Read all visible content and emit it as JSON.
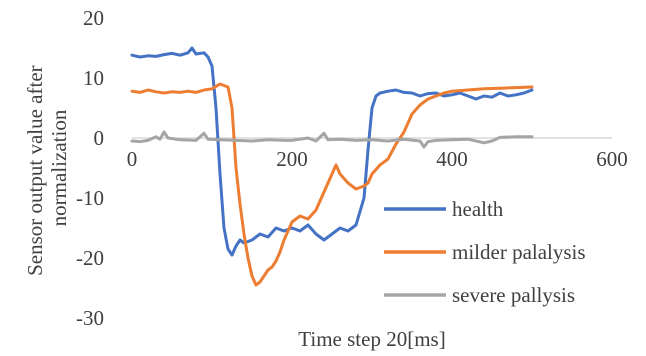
{
  "chart_data": {
    "type": "line",
    "xlabel": "Time step 20[ms]",
    "ylabel_lines": [
      "Sensor output value after",
      "normalization"
    ],
    "xlim": [
      0,
      600
    ],
    "ylim": [
      -30,
      20
    ],
    "x_ticks": [
      0,
      200,
      400,
      600
    ],
    "y_ticks": [
      20,
      10,
      0,
      -10,
      -20,
      -30
    ],
    "x_tick_labels": [
      "0",
      "200",
      "400",
      "600"
    ],
    "y_tick_labels": [
      "20",
      "10",
      "0",
      "-10",
      "-20",
      "-30"
    ],
    "grid": false,
    "legend_position": "lower-right",
    "series": [
      {
        "name": "health",
        "color": "#4472C4",
        "points": [
          [
            0,
            13.8
          ],
          [
            10,
            13.5
          ],
          [
            20,
            13.7
          ],
          [
            30,
            13.6
          ],
          [
            40,
            13.9
          ],
          [
            50,
            14.1
          ],
          [
            60,
            13.8
          ],
          [
            70,
            14.2
          ],
          [
            75,
            15.0
          ],
          [
            80,
            14.0
          ],
          [
            90,
            14.2
          ],
          [
            95,
            13.5
          ],
          [
            100,
            12.0
          ],
          [
            105,
            5.0
          ],
          [
            110,
            -6.0
          ],
          [
            115,
            -15.0
          ],
          [
            120,
            -18.5
          ],
          [
            125,
            -19.5
          ],
          [
            130,
            -18.0
          ],
          [
            135,
            -17.0
          ],
          [
            140,
            -17.5
          ],
          [
            150,
            -17.0
          ],
          [
            160,
            -16.0
          ],
          [
            170,
            -16.5
          ],
          [
            180,
            -15.0
          ],
          [
            190,
            -15.5
          ],
          [
            200,
            -15.0
          ],
          [
            210,
            -15.5
          ],
          [
            220,
            -14.5
          ],
          [
            230,
            -16.0
          ],
          [
            235,
            -16.5
          ],
          [
            240,
            -17.0
          ],
          [
            250,
            -16.0
          ],
          [
            260,
            -15.0
          ],
          [
            270,
            -15.5
          ],
          [
            280,
            -14.5
          ],
          [
            290,
            -10.0
          ],
          [
            295,
            -2.0
          ],
          [
            300,
            5.0
          ],
          [
            305,
            7.0
          ],
          [
            310,
            7.5
          ],
          [
            320,
            7.8
          ],
          [
            330,
            8.0
          ],
          [
            340,
            7.6
          ],
          [
            350,
            7.5
          ],
          [
            360,
            7.0
          ],
          [
            370,
            7.4
          ],
          [
            380,
            7.5
          ],
          [
            390,
            7.0
          ],
          [
            400,
            7.2
          ],
          [
            410,
            7.5
          ],
          [
            420,
            7.0
          ],
          [
            430,
            6.5
          ],
          [
            440,
            7.0
          ],
          [
            450,
            6.8
          ],
          [
            460,
            7.5
          ],
          [
            470,
            7.0
          ],
          [
            480,
            7.2
          ],
          [
            490,
            7.5
          ],
          [
            500,
            8.0
          ]
        ]
      },
      {
        "name": "milder palalysis",
        "color": "#ED7D31",
        "points": [
          [
            0,
            7.8
          ],
          [
            10,
            7.6
          ],
          [
            20,
            8.0
          ],
          [
            30,
            7.7
          ],
          [
            40,
            7.5
          ],
          [
            50,
            7.7
          ],
          [
            60,
            7.6
          ],
          [
            70,
            7.8
          ],
          [
            80,
            7.6
          ],
          [
            90,
            8.0
          ],
          [
            100,
            8.2
          ],
          [
            110,
            9.0
          ],
          [
            120,
            8.5
          ],
          [
            125,
            5.0
          ],
          [
            130,
            -5.0
          ],
          [
            135,
            -11.0
          ],
          [
            140,
            -16.0
          ],
          [
            145,
            -20.0
          ],
          [
            150,
            -23.0
          ],
          [
            155,
            -24.5
          ],
          [
            160,
            -24.0
          ],
          [
            165,
            -23.0
          ],
          [
            170,
            -22.0
          ],
          [
            175,
            -21.5
          ],
          [
            180,
            -20.5
          ],
          [
            185,
            -19.0
          ],
          [
            190,
            -17.0
          ],
          [
            200,
            -14.0
          ],
          [
            210,
            -13.0
          ],
          [
            220,
            -13.5
          ],
          [
            230,
            -12.0
          ],
          [
            240,
            -9.0
          ],
          [
            250,
            -6.0
          ],
          [
            255,
            -4.5
          ],
          [
            260,
            -6.0
          ],
          [
            270,
            -7.5
          ],
          [
            280,
            -8.5
          ],
          [
            290,
            -8.0
          ],
          [
            295,
            -7.5
          ],
          [
            300,
            -6.0
          ],
          [
            310,
            -4.5
          ],
          [
            320,
            -3.5
          ],
          [
            330,
            -1.0
          ],
          [
            340,
            1.0
          ],
          [
            350,
            4.0
          ],
          [
            360,
            5.5
          ],
          [
            370,
            6.5
          ],
          [
            380,
            7.0
          ],
          [
            390,
            7.5
          ],
          [
            400,
            7.8
          ],
          [
            420,
            8.0
          ],
          [
            440,
            8.2
          ],
          [
            460,
            8.3
          ],
          [
            480,
            8.4
          ],
          [
            500,
            8.5
          ]
        ]
      },
      {
        "name": "severe pallysis",
        "color": "#A5A5A5",
        "points": [
          [
            0,
            -0.5
          ],
          [
            10,
            -0.6
          ],
          [
            20,
            -0.4
          ],
          [
            30,
            0.2
          ],
          [
            35,
            -0.2
          ],
          [
            40,
            1.0
          ],
          [
            45,
            0.0
          ],
          [
            60,
            -0.3
          ],
          [
            80,
            -0.4
          ],
          [
            90,
            0.8
          ],
          [
            95,
            -0.2
          ],
          [
            110,
            -0.3
          ],
          [
            130,
            -0.4
          ],
          [
            150,
            -0.5
          ],
          [
            170,
            -0.3
          ],
          [
            190,
            -0.4
          ],
          [
            200,
            -0.4
          ],
          [
            220,
            0.0
          ],
          [
            230,
            -0.5
          ],
          [
            240,
            0.8
          ],
          [
            245,
            -0.3
          ],
          [
            260,
            -0.2
          ],
          [
            280,
            -0.4
          ],
          [
            300,
            -0.3
          ],
          [
            320,
            -0.5
          ],
          [
            340,
            -0.2
          ],
          [
            360,
            -0.5
          ],
          [
            365,
            -1.5
          ],
          [
            370,
            -0.6
          ],
          [
            380,
            -0.4
          ],
          [
            400,
            -0.3
          ],
          [
            420,
            -0.2
          ],
          [
            440,
            -0.8
          ],
          [
            450,
            -0.5
          ],
          [
            460,
            0.1
          ],
          [
            480,
            0.2
          ],
          [
            500,
            0.2
          ]
        ]
      }
    ]
  }
}
